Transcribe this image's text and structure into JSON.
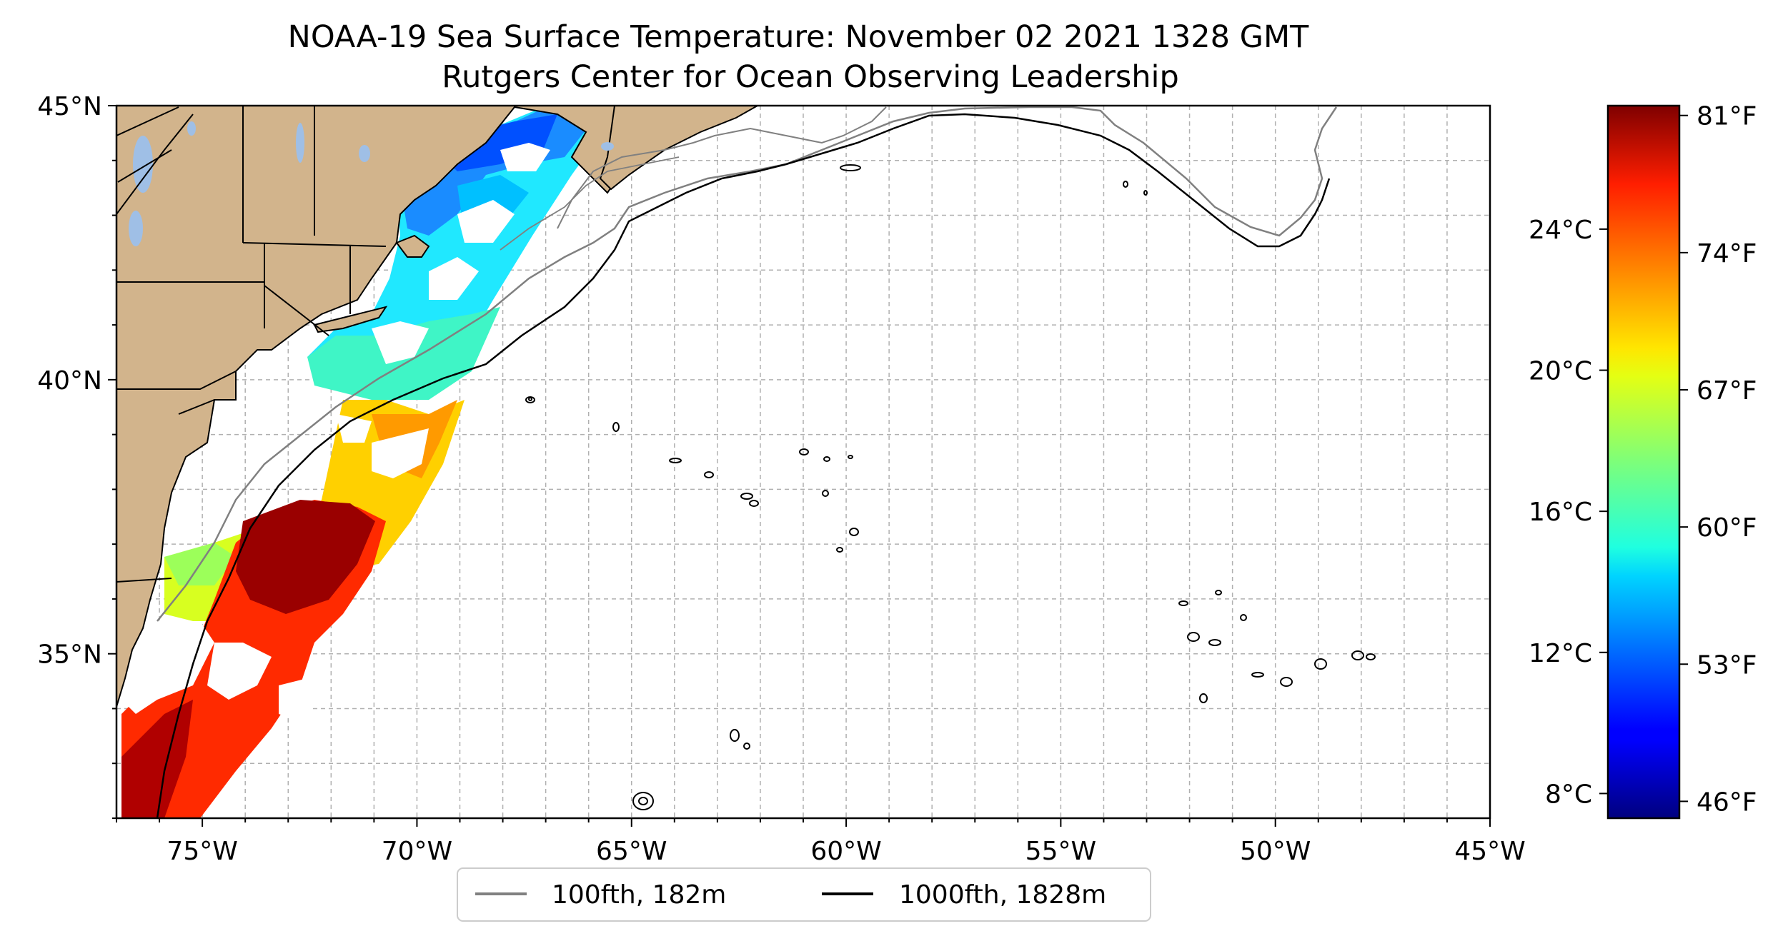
{
  "title": "NOAA-19 Sea Surface Temperature: November 02 2021 1328 GMT",
  "subtitle": "Rutgers Center for Ocean Observing Leadership",
  "map": {
    "lon_range": [
      -77,
      -45
    ],
    "lat_range": [
      32,
      45
    ],
    "lon_ticks": [
      "75°W",
      "70°W",
      "65°W",
      "60°W",
      "55°W",
      "50°W",
      "45°W"
    ],
    "lat_ticks": [
      "45°N",
      "40°N",
      "35°N"
    ],
    "grid": "dashed, 1° spacing",
    "land_color": "#d2b48c",
    "lake_color": "#9fbfe6"
  },
  "colorbar": {
    "celsius_ticks": [
      "24°C",
      "20°C",
      "16°C",
      "12°C",
      "8°C"
    ],
    "fahrenheit_ticks": [
      "81°F",
      "74°F",
      "67°F",
      "60°F",
      "53°F",
      "46°F"
    ],
    "colormap": "jet"
  },
  "legend": {
    "items": [
      {
        "label": "100fth, 182m",
        "color": "#808080"
      },
      {
        "label": "1000fth, 1828m",
        "color": "#000000"
      }
    ]
  }
}
